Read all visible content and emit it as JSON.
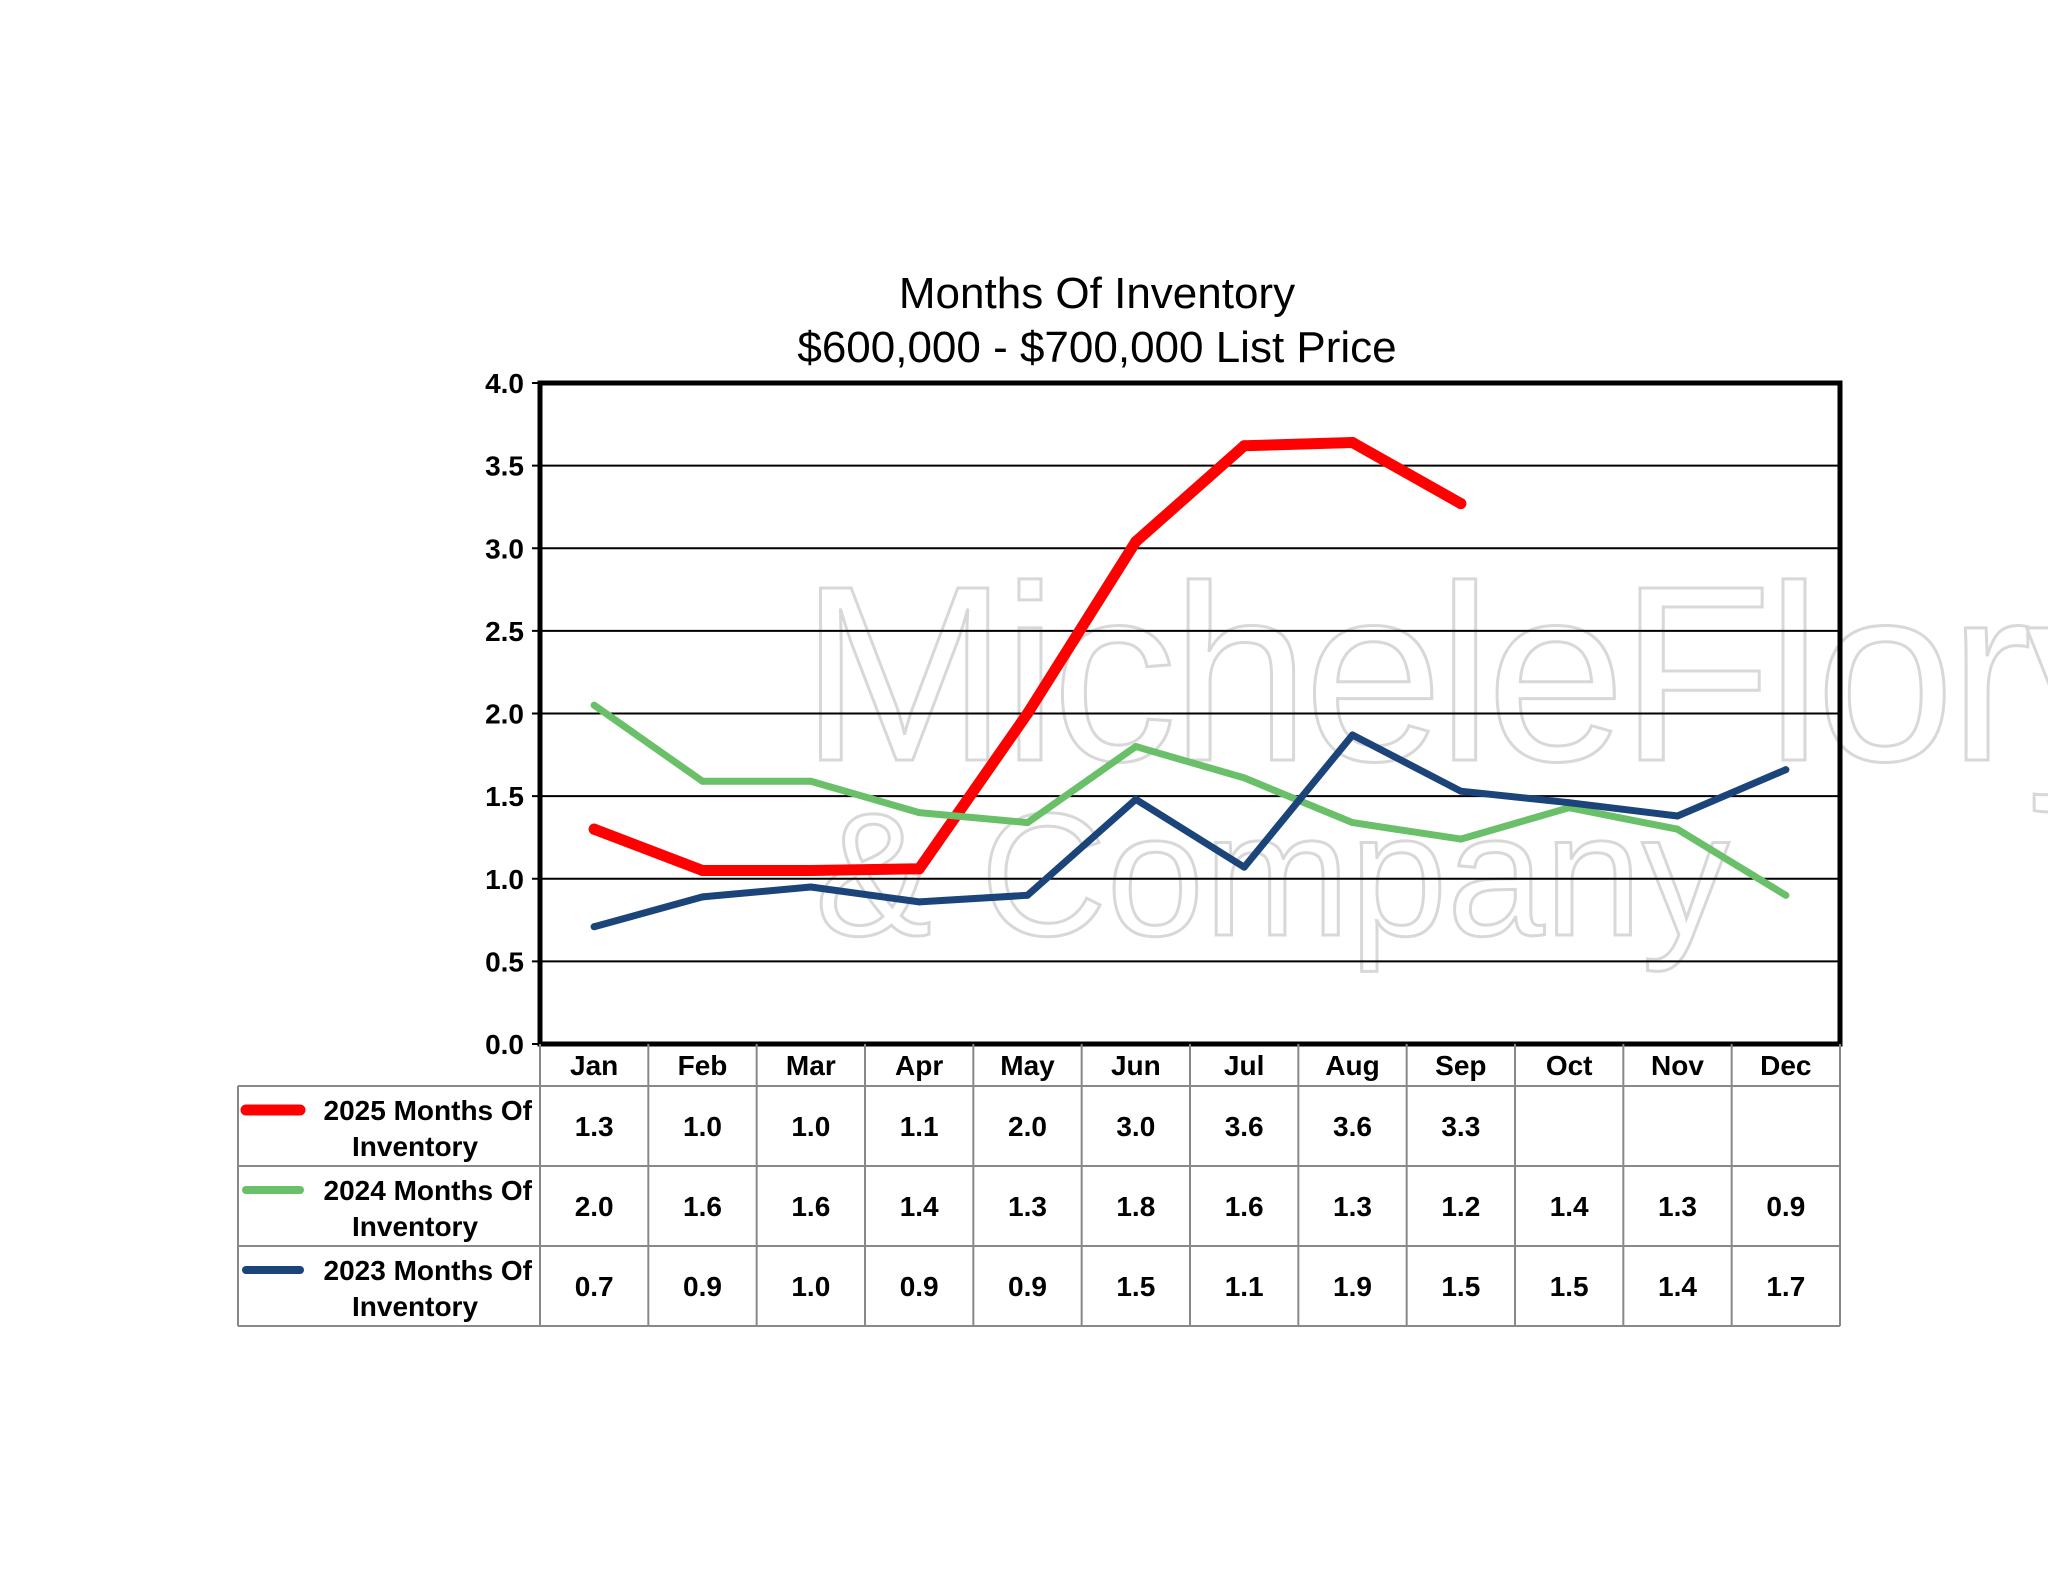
{
  "chart_data": {
    "type": "line",
    "title": "Months Of Inventory",
    "subtitle": "$600,000 - $700,000 List Price",
    "categories": [
      "Jan",
      "Feb",
      "Mar",
      "Apr",
      "May",
      "Jun",
      "Jul",
      "Aug",
      "Sep",
      "Oct",
      "Nov",
      "Dec"
    ],
    "ylim": [
      0,
      4
    ],
    "yticks": [
      "0.0",
      "0.5",
      "1.0",
      "1.5",
      "2.0",
      "2.5",
      "3.0",
      "3.5",
      "4.0"
    ],
    "grid": true,
    "legend_position": "data-table-left",
    "series": [
      {
        "name": "2025 Months Of Inventory",
        "name_lines": [
          "2025 Months Of",
          "Inventory"
        ],
        "color": "#ff0000",
        "values": [
          1.3,
          1.05,
          1.05,
          1.06,
          2.0,
          3.04,
          3.62,
          3.64,
          3.27,
          null,
          null,
          null
        ],
        "table_values": [
          "1.3",
          "1.0",
          "1.0",
          "1.1",
          "2.0",
          "3.0",
          "3.6",
          "3.6",
          "3.3",
          "",
          "",
          ""
        ]
      },
      {
        "name": "2024 Months Of Inventory",
        "name_lines": [
          "2024 Months Of",
          "Inventory"
        ],
        "color": "#6abf69",
        "values": [
          2.05,
          1.59,
          1.59,
          1.4,
          1.34,
          1.8,
          1.61,
          1.34,
          1.24,
          1.43,
          1.3,
          0.9
        ],
        "table_values": [
          "2.0",
          "1.6",
          "1.6",
          "1.4",
          "1.3",
          "1.8",
          "1.6",
          "1.3",
          "1.2",
          "1.4",
          "1.3",
          "0.9"
        ]
      },
      {
        "name": "2023 Months Of Inventory",
        "name_lines": [
          "2023 Months Of",
          "Inventory"
        ],
        "color": "#1a447a",
        "values": [
          0.71,
          0.89,
          0.95,
          0.86,
          0.9,
          1.48,
          1.07,
          1.87,
          1.53,
          1.46,
          1.38,
          1.66
        ],
        "table_values": [
          "0.7",
          "0.9",
          "1.0",
          "0.9",
          "0.9",
          "1.5",
          "1.1",
          "1.9",
          "1.5",
          "1.5",
          "1.4",
          "1.7"
        ]
      }
    ]
  },
  "watermark": {
    "line1": "MicheleFlory",
    "line2": "& Company"
  }
}
